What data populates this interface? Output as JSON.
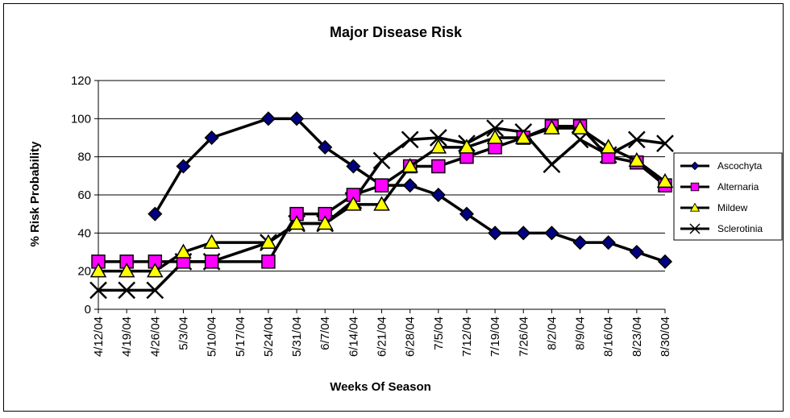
{
  "chart_data": {
    "type": "line",
    "title": "Major Disease Risk",
    "xlabel": "Weeks Of Season",
    "ylabel": "% Risk Probability",
    "ylim": [
      0,
      120
    ],
    "yticks": [
      0,
      20,
      40,
      60,
      80,
      100,
      120
    ],
    "grid": "horizontal",
    "legend_position": "right",
    "categories": [
      "4/12/04",
      "4/19/04",
      "4/26/04",
      "5/3/04",
      "5/10/04",
      "5/17/04",
      "5/24/04",
      "5/31/04",
      "6/7/04",
      "6/14/04",
      "6/21/04",
      "6/28/04",
      "7/5/04",
      "7/12/04",
      "7/19/04",
      "7/26/04",
      "8/2/04",
      "8/9/04",
      "8/16/04",
      "8/23/04",
      "8/30/04"
    ],
    "series": [
      {
        "name": "Ascochyta",
        "marker": "diamond",
        "marker_color": "#000080",
        "values": [
          null,
          null,
          50,
          75,
          90,
          null,
          100,
          100,
          85,
          75,
          65,
          65,
          60,
          50,
          40,
          40,
          40,
          35,
          35,
          30,
          25
        ]
      },
      {
        "name": "Alternaria",
        "marker": "square",
        "marker_color": "#ff00ff",
        "values": [
          25,
          25,
          25,
          25,
          25,
          null,
          25,
          50,
          50,
          60,
          65,
          75,
          75,
          80,
          85,
          90,
          96,
          96,
          80,
          77,
          65
        ]
      },
      {
        "name": "Mildew",
        "marker": "triangle",
        "marker_color": "#ffff00",
        "values": [
          20,
          20,
          20,
          30,
          35,
          null,
          35,
          45,
          45,
          55,
          55,
          75,
          85,
          85,
          90,
          90,
          95,
          95,
          85,
          78,
          67
        ]
      },
      {
        "name": "Sclerotinia",
        "marker": "x",
        "marker_color": "#000000",
        "values": [
          10,
          10,
          10,
          25,
          25,
          null,
          35,
          45,
          45,
          57,
          78,
          89,
          90,
          87,
          95,
          93,
          76,
          89,
          81,
          89,
          87
        ]
      }
    ]
  }
}
